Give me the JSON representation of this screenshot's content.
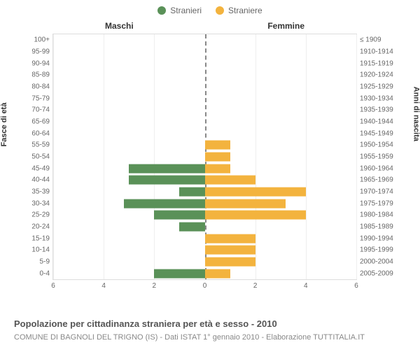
{
  "legend": {
    "male": {
      "label": "Stranieri",
      "color": "#5a9158"
    },
    "female": {
      "label": "Straniere",
      "color": "#f3b33e"
    }
  },
  "column_headers": {
    "left": "Maschi",
    "right": "Femmine"
  },
  "axis_labels": {
    "left": "Fasce di età",
    "right": "Anni di nascita"
  },
  "pyramid": {
    "type": "population-pyramid",
    "xlim": 6,
    "xtick_step": 2,
    "grid_color": "#eeeeee",
    "border_color": "#dddddd",
    "center_line_color": "#888888",
    "bar_colors": {
      "male": "#5a9158",
      "female": "#f3b33e"
    },
    "label_fontsize": 10,
    "label_color": "#666666",
    "background_color": "#ffffff",
    "rows": [
      {
        "age": "100+",
        "birth": "≤ 1909",
        "m": 0,
        "f": 0
      },
      {
        "age": "95-99",
        "birth": "1910-1914",
        "m": 0,
        "f": 0
      },
      {
        "age": "90-94",
        "birth": "1915-1919",
        "m": 0,
        "f": 0
      },
      {
        "age": "85-89",
        "birth": "1920-1924",
        "m": 0,
        "f": 0
      },
      {
        "age": "80-84",
        "birth": "1925-1929",
        "m": 0,
        "f": 0
      },
      {
        "age": "75-79",
        "birth": "1930-1934",
        "m": 0,
        "f": 0
      },
      {
        "age": "70-74",
        "birth": "1935-1939",
        "m": 0,
        "f": 0
      },
      {
        "age": "65-69",
        "birth": "1940-1944",
        "m": 0,
        "f": 0
      },
      {
        "age": "60-64",
        "birth": "1945-1949",
        "m": 0,
        "f": 0
      },
      {
        "age": "55-59",
        "birth": "1950-1954",
        "m": 0,
        "f": 1
      },
      {
        "age": "50-54",
        "birth": "1955-1959",
        "m": 0,
        "f": 1
      },
      {
        "age": "45-49",
        "birth": "1960-1964",
        "m": 3,
        "f": 1
      },
      {
        "age": "40-44",
        "birth": "1965-1969",
        "m": 3,
        "f": 2
      },
      {
        "age": "35-39",
        "birth": "1970-1974",
        "m": 1,
        "f": 4
      },
      {
        "age": "30-34",
        "birth": "1975-1979",
        "m": 3.2,
        "f": 3.2
      },
      {
        "age": "25-29",
        "birth": "1980-1984",
        "m": 2,
        "f": 4
      },
      {
        "age": "20-24",
        "birth": "1985-1989",
        "m": 1,
        "f": 0
      },
      {
        "age": "15-19",
        "birth": "1990-1994",
        "m": 0,
        "f": 2
      },
      {
        "age": "10-14",
        "birth": "1995-1999",
        "m": 0,
        "f": 2
      },
      {
        "age": "5-9",
        "birth": "2000-2004",
        "m": 0,
        "f": 2
      },
      {
        "age": "0-4",
        "birth": "2005-2009",
        "m": 2,
        "f": 1
      }
    ],
    "xticks": [
      6,
      4,
      2,
      0,
      2,
      4,
      6
    ]
  },
  "title": "Popolazione per cittadinanza straniera per età e sesso - 2010",
  "subtitle": "COMUNE DI BAGNOLI DEL TRIGNO (IS) - Dati ISTAT 1° gennaio 2010 - Elaborazione TUTTITALIA.IT"
}
